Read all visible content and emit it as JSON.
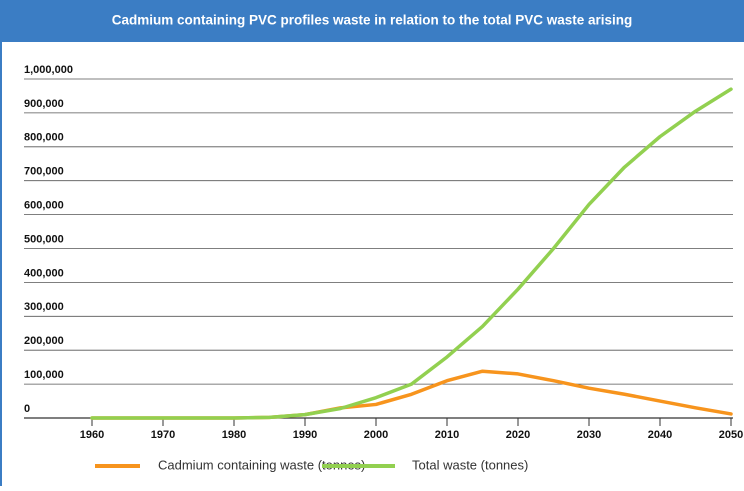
{
  "chart_data": {
    "type": "line",
    "title": "Cadmium containing PVC profiles waste in relation to the total PVC waste arising",
    "x": [
      1960,
      1965,
      1970,
      1975,
      1980,
      1985,
      1990,
      1995,
      2000,
      2005,
      2010,
      2015,
      2020,
      2025,
      2030,
      2035,
      2040,
      2045,
      2050
    ],
    "series": [
      {
        "name": "Cadmium containing waste (tonnes)",
        "color": "#f7941d",
        "values": [
          0,
          0,
          0,
          0,
          0,
          2000,
          10000,
          30000,
          40000,
          70000,
          110000,
          138000,
          130000,
          110000,
          88000,
          70000,
          50000,
          30000,
          12000
        ]
      },
      {
        "name": "Total waste (tonnes)",
        "color": "#92d050",
        "values": [
          0,
          0,
          0,
          0,
          0,
          2000,
          10000,
          28000,
          60000,
          100000,
          180000,
          270000,
          380000,
          500000,
          630000,
          740000,
          830000,
          905000,
          970000
        ]
      }
    ],
    "xlim": [
      1960,
      2050
    ],
    "xticks": [
      1960,
      1970,
      1980,
      1990,
      2000,
      2010,
      2020,
      2030,
      2040,
      2050
    ],
    "ylim": [
      0,
      1000000
    ],
    "yticks": [
      0,
      {
        "value": 100000,
        "label": "100,000"
      },
      {
        "value": 200000,
        "label": "200,000"
      },
      {
        "value": 300000,
        "label": "300,000"
      },
      {
        "value": 400000,
        "label": "400,000"
      },
      {
        "value": 500000,
        "label": "500,000"
      },
      {
        "value": 600000,
        "label": "600,000"
      },
      {
        "value": 700000,
        "label": "700,000"
      },
      {
        "value": 800000,
        "label": "800,000"
      },
      {
        "value": 900000,
        "label": "900,000"
      },
      {
        "value": 1000000,
        "label": "1,000,000"
      }
    ],
    "grid": true
  }
}
